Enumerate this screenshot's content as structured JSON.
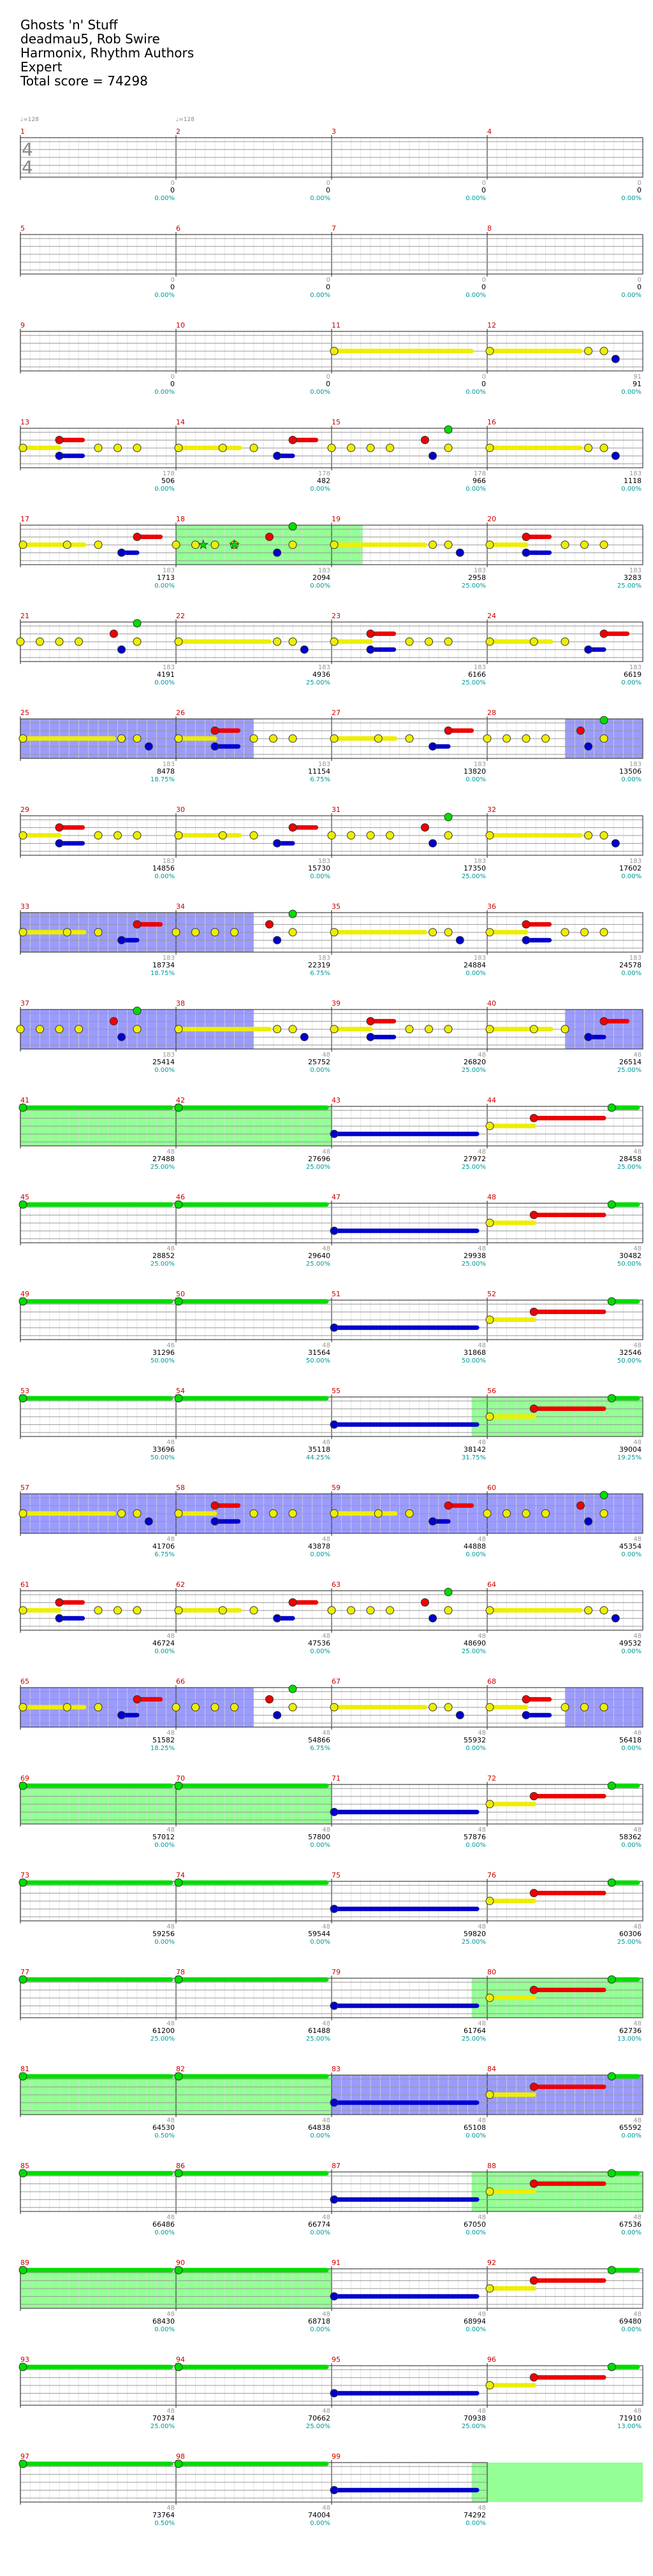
{
  "song": {
    "title": "Ghosts 'n' Stuff",
    "artist": "deadmau5, Rob Swire",
    "charter": "Harmonix, Rhythm Authors",
    "difficulty": "Expert",
    "total_score_label": "Total score = 74298"
  },
  "tempo_markers": [
    "♩=128",
    "♩=128"
  ],
  "time_signature": {
    "top": "4",
    "bottom": "4"
  },
  "colors": {
    "green": "#00dd00",
    "red": "#ee0000",
    "yellow": "#eeee00",
    "blue": "#0000cc",
    "orange": "#ee7700",
    "overdrive_fill": "#88ff88",
    "solo_fill": "#6666ff",
    "measure_number": "#cc0000",
    "score_text": "#000000",
    "multiplier_text": "#009999",
    "phrase_text": "#999999"
  },
  "measures": [
    {
      "n": "1",
      "score": "0",
      "mult": "0.00%",
      "phrase": "0"
    },
    {
      "n": "2",
      "score": "0",
      "mult": "0.00%",
      "phrase": "0"
    },
    {
      "n": "3",
      "score": "0",
      "mult": "0.00%",
      "phrase": "0"
    },
    {
      "n": "4",
      "score": "0",
      "mult": "0.00%",
      "phrase": "0"
    },
    {
      "n": "5",
      "score": "0",
      "mult": "0.00%",
      "phrase": "0"
    },
    {
      "n": "6",
      "score": "0",
      "mult": "0.00%",
      "phrase": "0"
    },
    {
      "n": "7",
      "score": "0",
      "mult": "0.00%",
      "phrase": "0"
    },
    {
      "n": "8",
      "score": "0",
      "mult": "0.00%",
      "phrase": "0"
    },
    {
      "n": "9",
      "score": "0",
      "mult": "0.00%",
      "phrase": "0"
    },
    {
      "n": "10",
      "score": "0",
      "mult": "0.00%",
      "phrase": "0"
    },
    {
      "n": "11",
      "score": "0",
      "mult": "0.00%",
      "phrase": "0"
    },
    {
      "n": "12",
      "score": "91",
      "mult": "0.00%",
      "phrase": "91"
    },
    {
      "n": "13",
      "score": "506",
      "mult": "0.00%",
      "phrase": "178"
    },
    {
      "n": "14",
      "score": "482",
      "mult": "0.00%",
      "phrase": "178"
    },
    {
      "n": "15",
      "score": "966",
      "mult": "0.00%",
      "phrase": "178"
    },
    {
      "n": "16",
      "score": "1118",
      "mult": "0.00%",
      "phrase": "183"
    },
    {
      "n": "17",
      "score": "1713",
      "mult": "0.00%",
      "phrase": "183"
    },
    {
      "n": "18",
      "score": "2094",
      "mult": "0.00%",
      "phrase": "183"
    },
    {
      "n": "19",
      "score": "2958",
      "mult": "25.00%",
      "phrase": "183"
    },
    {
      "n": "20",
      "score": "3283",
      "mult": "25.00%",
      "phrase": "183"
    },
    {
      "n": "21",
      "score": "4191",
      "mult": "0.00%",
      "phrase": "183"
    },
    {
      "n": "22",
      "score": "4936",
      "mult": "25.00%",
      "phrase": "183"
    },
    {
      "n": "23",
      "score": "6166",
      "mult": "25.00%",
      "phrase": "183"
    },
    {
      "n": "24",
      "score": "6619",
      "mult": "0.00%",
      "phrase": "183"
    },
    {
      "n": "25",
      "score": "8478",
      "mult": "18.75%",
      "phrase": "183"
    },
    {
      "n": "26",
      "score": "11154",
      "mult": "6.75%",
      "phrase": "183"
    },
    {
      "n": "27",
      "score": "13820",
      "mult": "0.00%",
      "phrase": "183"
    },
    {
      "n": "28",
      "score": "13506",
      "mult": "0.00%",
      "phrase": "183"
    },
    {
      "n": "29",
      "score": "14856",
      "mult": "0.00%",
      "phrase": "183"
    },
    {
      "n": "30",
      "score": "15730",
      "mult": "0.00%",
      "phrase": "183"
    },
    {
      "n": "31",
      "score": "17350",
      "mult": "25.00%",
      "phrase": "183"
    },
    {
      "n": "32",
      "score": "17602",
      "mult": "0.00%",
      "phrase": "183"
    },
    {
      "n": "33",
      "score": "18734",
      "mult": "18.75%",
      "phrase": "183"
    },
    {
      "n": "34",
      "score": "22319",
      "mult": "6.75%",
      "phrase": "183"
    },
    {
      "n": "35",
      "score": "24884",
      "mult": "0.00%",
      "phrase": "183"
    },
    {
      "n": "36",
      "score": "24578",
      "mult": "0.00%",
      "phrase": "183"
    },
    {
      "n": "37",
      "score": "25414",
      "mult": "0.00%",
      "phrase": "183"
    },
    {
      "n": "38",
      "score": "25752",
      "mult": "0.00%",
      "phrase": "48"
    },
    {
      "n": "39",
      "score": "26820",
      "mult": "25.00%",
      "phrase": "48"
    },
    {
      "n": "40",
      "score": "26514",
      "mult": "25.00%",
      "phrase": "48"
    },
    {
      "n": "41",
      "score": "27488",
      "mult": "25.00%",
      "phrase": "48"
    },
    {
      "n": "42",
      "score": "27696",
      "mult": "25.00%",
      "phrase": "48"
    },
    {
      "n": "43",
      "score": "27972",
      "mult": "25.00%",
      "phrase": "48"
    },
    {
      "n": "44",
      "score": "28458",
      "mult": "25.00%",
      "phrase": "48"
    },
    {
      "n": "45",
      "score": "28852",
      "mult": "25.00%",
      "phrase": "48"
    },
    {
      "n": "46",
      "score": "29640",
      "mult": "25.00%",
      "phrase": "48"
    },
    {
      "n": "47",
      "score": "29938",
      "mult": "25.00%",
      "phrase": "48"
    },
    {
      "n": "48",
      "score": "30482",
      "mult": "50.00%",
      "phrase": "48"
    },
    {
      "n": "49",
      "score": "31296",
      "mult": "50.00%",
      "phrase": "48"
    },
    {
      "n": "50",
      "score": "31564",
      "mult": "50.00%",
      "phrase": "48"
    },
    {
      "n": "51",
      "score": "31868",
      "mult": "50.00%",
      "phrase": "48"
    },
    {
      "n": "52",
      "score": "32546",
      "mult": "50.00%",
      "phrase": "48"
    },
    {
      "n": "53",
      "score": "33696",
      "mult": "50.00%",
      "phrase": "48"
    },
    {
      "n": "54",
      "score": "35118",
      "mult": "44.25%",
      "phrase": "48"
    },
    {
      "n": "55",
      "score": "38142",
      "mult": "31.75%",
      "phrase": "48"
    },
    {
      "n": "56",
      "score": "39004",
      "mult": "19.25%",
      "phrase": "48"
    },
    {
      "n": "57",
      "score": "41706",
      "mult": "6.75%",
      "phrase": "48"
    },
    {
      "n": "58",
      "score": "43878",
      "mult": "0.00%",
      "phrase": "48"
    },
    {
      "n": "59",
      "score": "44888",
      "mult": "0.00%",
      "phrase": "48"
    },
    {
      "n": "60",
      "score": "45354",
      "mult": "0.00%",
      "phrase": "48"
    },
    {
      "n": "61",
      "score": "46724",
      "mult": "0.00%",
      "phrase": "48"
    },
    {
      "n": "62",
      "score": "47536",
      "mult": "0.00%",
      "phrase": "48"
    },
    {
      "n": "63",
      "score": "48690",
      "mult": "25.00%",
      "phrase": "48"
    },
    {
      "n": "64",
      "score": "49532",
      "mult": "0.00%",
      "phrase": "48"
    },
    {
      "n": "65",
      "score": "51582",
      "mult": "18.25%",
      "phrase": "48"
    },
    {
      "n": "66",
      "score": "54866",
      "mult": "6.75%",
      "phrase": "48"
    },
    {
      "n": "67",
      "score": "55932",
      "mult": "0.00%",
      "phrase": "48"
    },
    {
      "n": "68",
      "score": "56418",
      "mult": "0.00%",
      "phrase": "48"
    },
    {
      "n": "69",
      "score": "57012",
      "mult": "0.00%",
      "phrase": "48"
    },
    {
      "n": "70",
      "score": "57800",
      "mult": "0.00%",
      "phrase": "48"
    },
    {
      "n": "71",
      "score": "57876",
      "mult": "0.00%",
      "phrase": "48"
    },
    {
      "n": "72",
      "score": "58362",
      "mult": "0.00%",
      "phrase": "48"
    },
    {
      "n": "73",
      "score": "59256",
      "mult": "0.00%",
      "phrase": "48"
    },
    {
      "n": "74",
      "score": "59544",
      "mult": "0.00%",
      "phrase": "48"
    },
    {
      "n": "75",
      "score": "59820",
      "mult": "25.00%",
      "phrase": "48"
    },
    {
      "n": "76",
      "score": "60306",
      "mult": "25.00%",
      "phrase": "48"
    },
    {
      "n": "77",
      "score": "61200",
      "mult": "25.00%",
      "phrase": "48"
    },
    {
      "n": "78",
      "score": "61488",
      "mult": "25.00%",
      "phrase": "48"
    },
    {
      "n": "79",
      "score": "61764",
      "mult": "25.00%",
      "phrase": "48"
    },
    {
      "n": "80",
      "score": "62736",
      "mult": "13.00%",
      "phrase": "48"
    },
    {
      "n": "81",
      "score": "64530",
      "mult": "0.50%",
      "phrase": "48"
    },
    {
      "n": "82",
      "score": "64838",
      "mult": "0.00%",
      "phrase": "48"
    },
    {
      "n": "83",
      "score": "65108",
      "mult": "0.00%",
      "phrase": "48"
    },
    {
      "n": "84",
      "score": "65592",
      "mult": "0.00%",
      "phrase": "48"
    },
    {
      "n": "85",
      "score": "66486",
      "mult": "0.00%",
      "phrase": "48"
    },
    {
      "n": "86",
      "score": "66774",
      "mult": "0.00%",
      "phrase": "48"
    },
    {
      "n": "87",
      "score": "67050",
      "mult": "0.00%",
      "phrase": "48"
    },
    {
      "n": "88",
      "score": "67536",
      "mult": "0.00%",
      "phrase": "48"
    },
    {
      "n": "89",
      "score": "68430",
      "mult": "0.00%",
      "phrase": "48"
    },
    {
      "n": "90",
      "score": "68718",
      "mult": "0.00%",
      "phrase": "48"
    },
    {
      "n": "91",
      "score": "68994",
      "mult": "0.00%",
      "phrase": "48"
    },
    {
      "n": "92",
      "score": "69480",
      "mult": "0.00%",
      "phrase": "48"
    },
    {
      "n": "93",
      "score": "70374",
      "mult": "25.00%",
      "phrase": "48"
    },
    {
      "n": "94",
      "score": "70662",
      "mult": "25.00%",
      "phrase": "48"
    },
    {
      "n": "95",
      "score": "70938",
      "mult": "25.00%",
      "phrase": "48"
    },
    {
      "n": "96",
      "score": "71910",
      "mult": "13.00%",
      "phrase": "48"
    },
    {
      "n": "97",
      "score": "73764",
      "mult": "0.50%",
      "phrase": "48"
    },
    {
      "n": "98",
      "score": "74004",
      "mult": "0.00%",
      "phrase": "48"
    },
    {
      "n": "99",
      "score": "74292",
      "mult": "0.00%",
      "phrase": "48"
    },
    {
      "n": "",
      "score": "74298",
      "mult": "0.00%",
      "phrase": "1"
    }
  ],
  "row_kinds": [
    "empty",
    "empty",
    "intro",
    "A",
    "A2",
    "B",
    "Bs",
    "A",
    "As",
    "Bs",
    "C",
    "D",
    "D",
    "Dg",
    "E",
    "B",
    "Bs",
    "C",
    "D",
    "Dg",
    "Cg",
    "Dg",
    "C",
    "D",
    "Dg",
    "Cg",
    "end"
  ]
}
